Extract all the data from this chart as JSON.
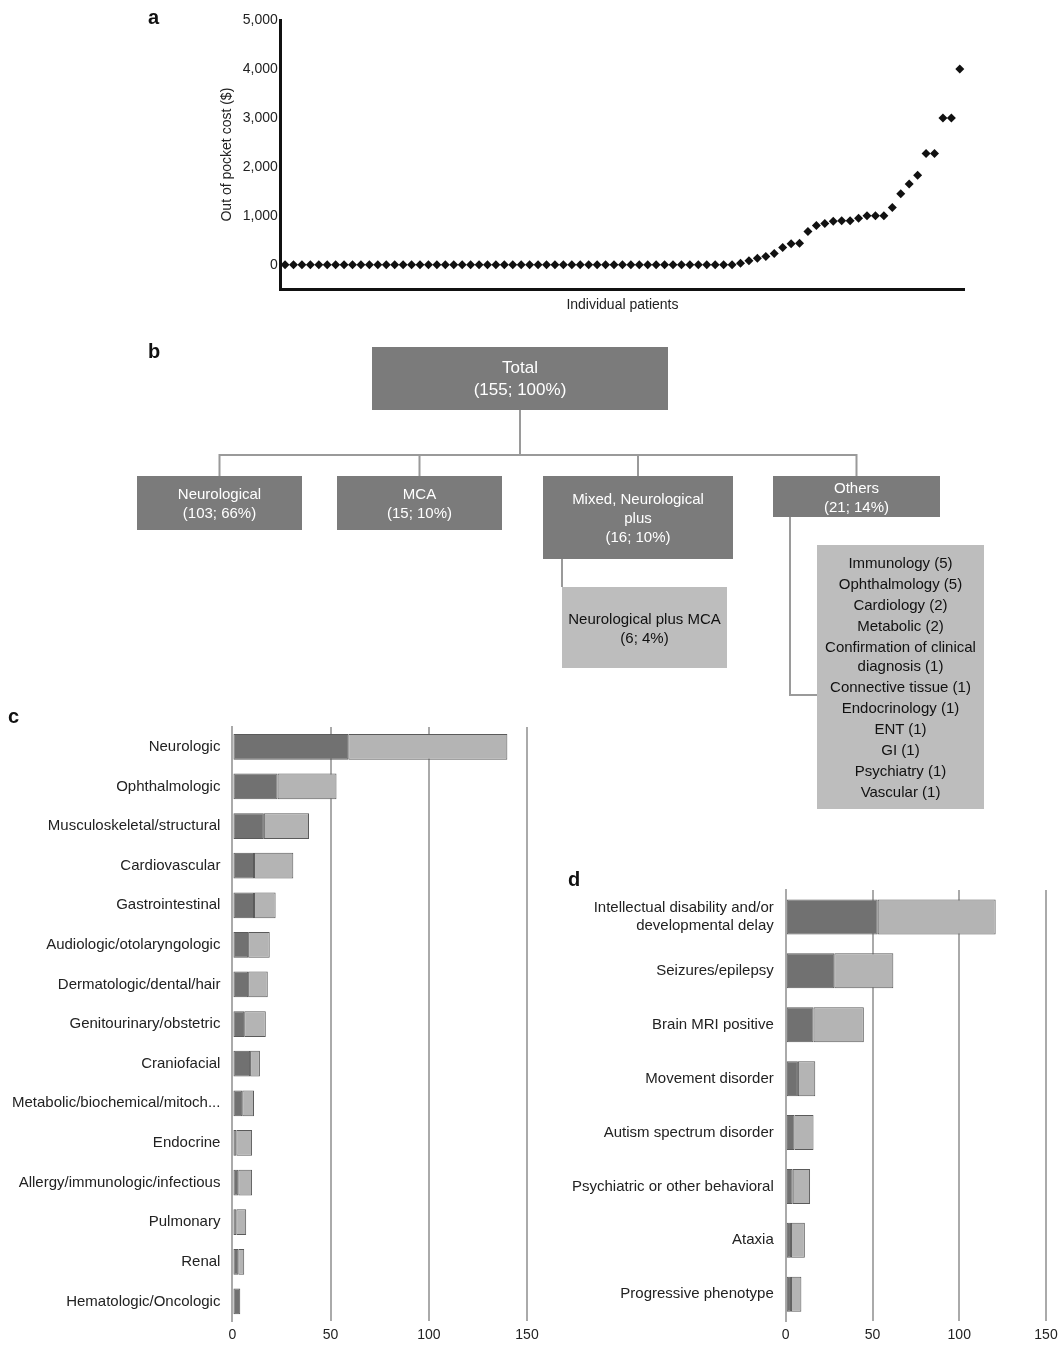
{
  "chart_data": [
    {
      "type": "scatter",
      "title": "a",
      "xlabel": "Individual patients",
      "ylabel": "Out of pocket cost ($)",
      "categories": [
        null,
        null,
        null,
        null,
        null,
        null,
        null,
        null,
        null,
        null,
        null,
        null,
        null,
        null,
        null,
        null,
        null,
        null,
        null,
        null,
        null,
        null,
        null,
        null,
        null,
        null,
        null,
        null,
        null,
        null,
        null,
        null,
        null,
        null,
        null,
        null,
        null,
        null,
        null,
        null,
        null,
        null,
        null,
        null,
        null,
        null,
        null,
        null,
        null,
        null,
        null,
        null,
        null,
        null,
        null,
        null,
        null,
        null,
        null,
        null,
        null,
        null,
        null,
        null,
        null,
        null,
        null,
        null,
        null,
        null,
        null,
        null,
        null,
        null,
        null,
        null,
        null,
        null,
        null,
        null,
        null
      ],
      "series": [
        {
          "color": "#111111",
          "values": [
            0,
            0,
            0,
            0,
            0,
            0,
            0,
            0,
            0,
            0,
            0,
            0,
            0,
            0,
            0,
            0,
            0,
            0,
            0,
            0,
            0,
            0,
            0,
            0,
            0,
            0,
            0,
            0,
            0,
            0,
            0,
            0,
            0,
            0,
            0,
            0,
            0,
            0,
            0,
            0,
            0,
            0,
            0,
            0,
            0,
            0,
            0,
            0,
            0,
            0,
            0,
            0,
            0,
            0,
            30,
            80,
            130,
            170,
            230,
            350,
            430,
            440,
            680,
            800,
            840,
            890,
            900,
            900,
            950,
            1000,
            1000,
            1000,
            1170,
            1450,
            1650,
            1830,
            2270,
            2270,
            3000,
            3000,
            4000
          ]
        }
      ],
      "ylim": [
        -500,
        5000
      ],
      "yticks": [
        {
          "value": 0,
          "label": "0"
        },
        {
          "value": 1000,
          "label": "1,000"
        },
        {
          "value": 2000,
          "label": "2,000"
        },
        {
          "value": 3000,
          "label": "3,000"
        },
        {
          "value": 4000,
          "label": "4,000"
        },
        {
          "value": 5000,
          "label": "5,000"
        }
      ],
      "grid": false,
      "marker": "diamond",
      "tick_labels": "y"
    },
    {
      "type": "other",
      "title": "b",
      "annotations": [
        "Total\n(155; 100%)",
        "Neurological\n(103; 66%)",
        "MCA\n(15; 10%)",
        "Mixed, Neurological\nplus\n(16; 10%)",
        "Others\n(21; 14%)",
        "Neurological plus MCA\n(6; 4%)",
        "Immunology (5)",
        "Ophthalmology (5)",
        "Cardiology (2)",
        "Metabolic (2)",
        "Confirmation of clinical\ndiagnosis (1)",
        "Connective tissue (1)",
        "Endocrinology (1)",
        "ENT (1)",
        "GI (1)",
        "Psychiatry (1)",
        "Vascular (1)"
      ]
    },
    {
      "type": "bar",
      "title": "c",
      "orientation": "horizontal",
      "stacked": true,
      "categories": [
        "Neurologic",
        "Ophthalmologic",
        "Musculoskeletal/structural",
        "Cardiovascular",
        "Gastrointestinal",
        "Audiologic/otolaryngologic",
        "Dermatologic/dental/hair",
        "Genitourinary/obstetric",
        "Craniofacial",
        "Metabolic/biochemical/mitoch...",
        "Endocrine",
        "Allergy/immunologic/infectious",
        "Pulmonary",
        "Renal",
        "Hematologic/Oncologic"
      ],
      "series": [
        {
          "color": "#717171",
          "values": [
            59,
            23,
            16,
            11,
            11,
            8,
            8,
            6,
            9,
            5,
            2,
            3,
            2,
            3,
            4
          ]
        },
        {
          "color": "#b4b4b4",
          "values": [
            81,
            30,
            23,
            20,
            11,
            11,
            10,
            11,
            5,
            6,
            8,
            7,
            5,
            3,
            0
          ]
        }
      ],
      "xlim": [
        0,
        150
      ],
      "xticks": [
        0,
        50,
        100,
        150
      ],
      "grid": "x",
      "legend": false
    },
    {
      "type": "bar",
      "title": "d",
      "orientation": "horizontal",
      "stacked": true,
      "categories": [
        "Intellectual disability and/or developmental delay",
        "Seizures/epilepsy",
        "Brain MRI positive",
        "Movement disorder",
        "Autism spectrum disorder",
        "Psychiatric or other behavioral",
        "Ataxia",
        "Progressive phenotype"
      ],
      "series": [
        {
          "color": "#717171",
          "values": [
            53,
            28,
            16,
            7,
            5,
            4,
            3,
            3
          ]
        },
        {
          "color": "#b4b4b4",
          "values": [
            68,
            34,
            29,
            10,
            11,
            10,
            8,
            6
          ]
        }
      ],
      "xlim": [
        0,
        150
      ],
      "xticks": [
        0,
        50,
        100,
        150
      ],
      "grid": "x",
      "legend": false
    }
  ]
}
